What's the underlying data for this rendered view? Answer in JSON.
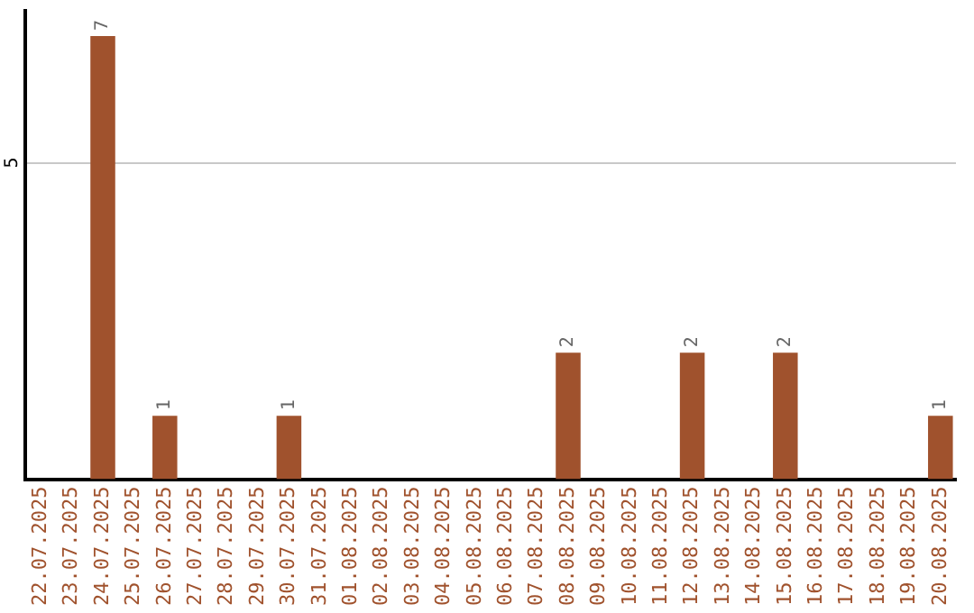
{
  "chart_data": {
    "type": "bar",
    "categories": [
      "22.07.2025",
      "23.07.2025",
      "24.07.2025",
      "25.07.2025",
      "26.07.2025",
      "27.07.2025",
      "28.07.2025",
      "29.07.2025",
      "30.07.2025",
      "31.07.2025",
      "01.08.2025",
      "02.08.2025",
      "03.08.2025",
      "04.08.2025",
      "05.08.2025",
      "06.08.2025",
      "07.08.2025",
      "08.08.2025",
      "09.08.2025",
      "10.08.2025",
      "11.08.2025",
      "12.08.2025",
      "13.08.2025",
      "14.08.2025",
      "15.08.2025",
      "16.08.2025",
      "17.08.2025",
      "18.08.2025",
      "19.08.2025",
      "20.08.2025"
    ],
    "values": [
      0,
      0,
      7,
      0,
      1,
      0,
      0,
      0,
      1,
      0,
      0,
      0,
      0,
      0,
      0,
      0,
      0,
      2,
      0,
      0,
      0,
      2,
      0,
      0,
      2,
      0,
      0,
      0,
      0,
      1
    ],
    "value_labels": [
      null,
      null,
      "7",
      null,
      "1",
      null,
      null,
      null,
      "1",
      null,
      null,
      null,
      null,
      null,
      null,
      null,
      null,
      "2",
      null,
      null,
      null,
      "2",
      null,
      null,
      "2",
      null,
      null,
      null,
      null,
      "1"
    ],
    "color": "#a0522d",
    "ylim": [
      0,
      7.4
    ],
    "yticks": [
      5
    ],
    "grid": "y",
    "legend": false
  }
}
